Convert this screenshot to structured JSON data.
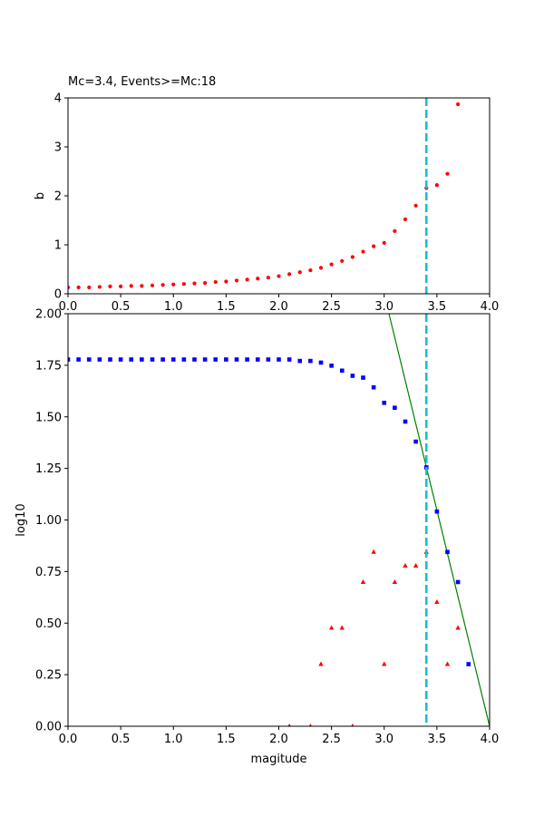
{
  "chart_data": [
    {
      "type": "scatter",
      "title": "Mc=3.4, Events>=Mc:18",
      "xlabel": "",
      "ylabel": "b",
      "xlim": [
        0,
        4
      ],
      "ylim": [
        0,
        4
      ],
      "xticks": [
        "0.0",
        "0.5",
        "1.0",
        "1.5",
        "2.0",
        "2.5",
        "3.0",
        "3.5",
        "4.0"
      ],
      "yticks": [
        "0",
        "1",
        "2",
        "3",
        "4"
      ],
      "grid": false,
      "vline": {
        "x": 3.4,
        "color": "#17becf",
        "style": "dashed"
      },
      "series": [
        {
          "color": "#ff0000",
          "marker": "circle",
          "x": [
            0.0,
            0.1,
            0.2,
            0.3,
            0.4,
            0.5,
            0.6,
            0.7,
            0.8,
            0.9,
            1.0,
            1.1,
            1.2,
            1.3,
            1.4,
            1.5,
            1.6,
            1.7,
            1.8,
            1.9,
            2.0,
            2.1,
            2.2,
            2.3,
            2.4,
            2.5,
            2.6,
            2.7,
            2.8,
            2.9,
            3.0,
            3.1,
            3.2,
            3.3,
            3.4,
            3.5,
            3.6,
            3.7
          ],
          "y": [
            0.13,
            0.13,
            0.13,
            0.14,
            0.15,
            0.15,
            0.16,
            0.16,
            0.17,
            0.18,
            0.19,
            0.2,
            0.21,
            0.22,
            0.24,
            0.25,
            0.27,
            0.29,
            0.31,
            0.33,
            0.36,
            0.4,
            0.44,
            0.48,
            0.53,
            0.6,
            0.67,
            0.75,
            0.86,
            0.97,
            1.04,
            1.28,
            1.52,
            1.8,
            2.16,
            2.22,
            2.45,
            3.87
          ]
        }
      ]
    },
    {
      "type": "scatter",
      "title": "",
      "xlabel": "magitude",
      "ylabel": "log10",
      "xlim": [
        0,
        4
      ],
      "ylim": [
        0,
        2
      ],
      "xticks": [
        "0.0",
        "0.5",
        "1.0",
        "1.5",
        "2.0",
        "2.5",
        "3.0",
        "3.5",
        "4.0"
      ],
      "yticks": [
        "0.00",
        "0.25",
        "0.50",
        "0.75",
        "1.00",
        "1.25",
        "1.50",
        "1.75",
        "2.00"
      ],
      "grid": false,
      "vline": {
        "x": 3.4,
        "color": "#17becf",
        "style": "dashed"
      },
      "fit_line": {
        "color": "#008000",
        "x": [
          3.045,
          4.0
        ],
        "y": [
          2.0,
          0.0
        ]
      },
      "series": [
        {
          "color": "#0000ff",
          "marker": "square",
          "x": [
            0.0,
            0.1,
            0.2,
            0.3,
            0.4,
            0.5,
            0.6,
            0.7,
            0.8,
            0.9,
            1.0,
            1.1,
            1.2,
            1.3,
            1.4,
            1.5,
            1.6,
            1.7,
            1.8,
            1.9,
            2.0,
            2.1,
            2.2,
            2.3,
            2.4,
            2.5,
            2.6,
            2.7,
            2.8,
            2.9,
            3.0,
            3.1,
            3.2,
            3.3,
            3.4,
            3.5,
            3.6,
            3.7,
            3.8
          ],
          "y": [
            1.778,
            1.778,
            1.778,
            1.778,
            1.778,
            1.778,
            1.778,
            1.778,
            1.778,
            1.778,
            1.778,
            1.778,
            1.778,
            1.778,
            1.778,
            1.778,
            1.778,
            1.778,
            1.778,
            1.778,
            1.778,
            1.778,
            1.771,
            1.771,
            1.763,
            1.748,
            1.724,
            1.699,
            1.69,
            1.643,
            1.568,
            1.544,
            1.477,
            1.38,
            1.255,
            1.041,
            0.845,
            0.699,
            0.301
          ]
        },
        {
          "color": "#ff0000",
          "marker": "triangle",
          "x": [
            2.1,
            2.3,
            2.4,
            2.5,
            2.6,
            2.7,
            2.8,
            2.9,
            3.0,
            3.1,
            3.2,
            3.3,
            3.4,
            3.5,
            3.6,
            3.7
          ],
          "y": [
            0.0,
            0.0,
            0.301,
            0.477,
            0.477,
            0.0,
            0.699,
            0.845,
            0.301,
            0.699,
            0.778,
            0.778,
            0.845,
            0.602,
            0.301,
            0.477
          ]
        }
      ]
    }
  ]
}
